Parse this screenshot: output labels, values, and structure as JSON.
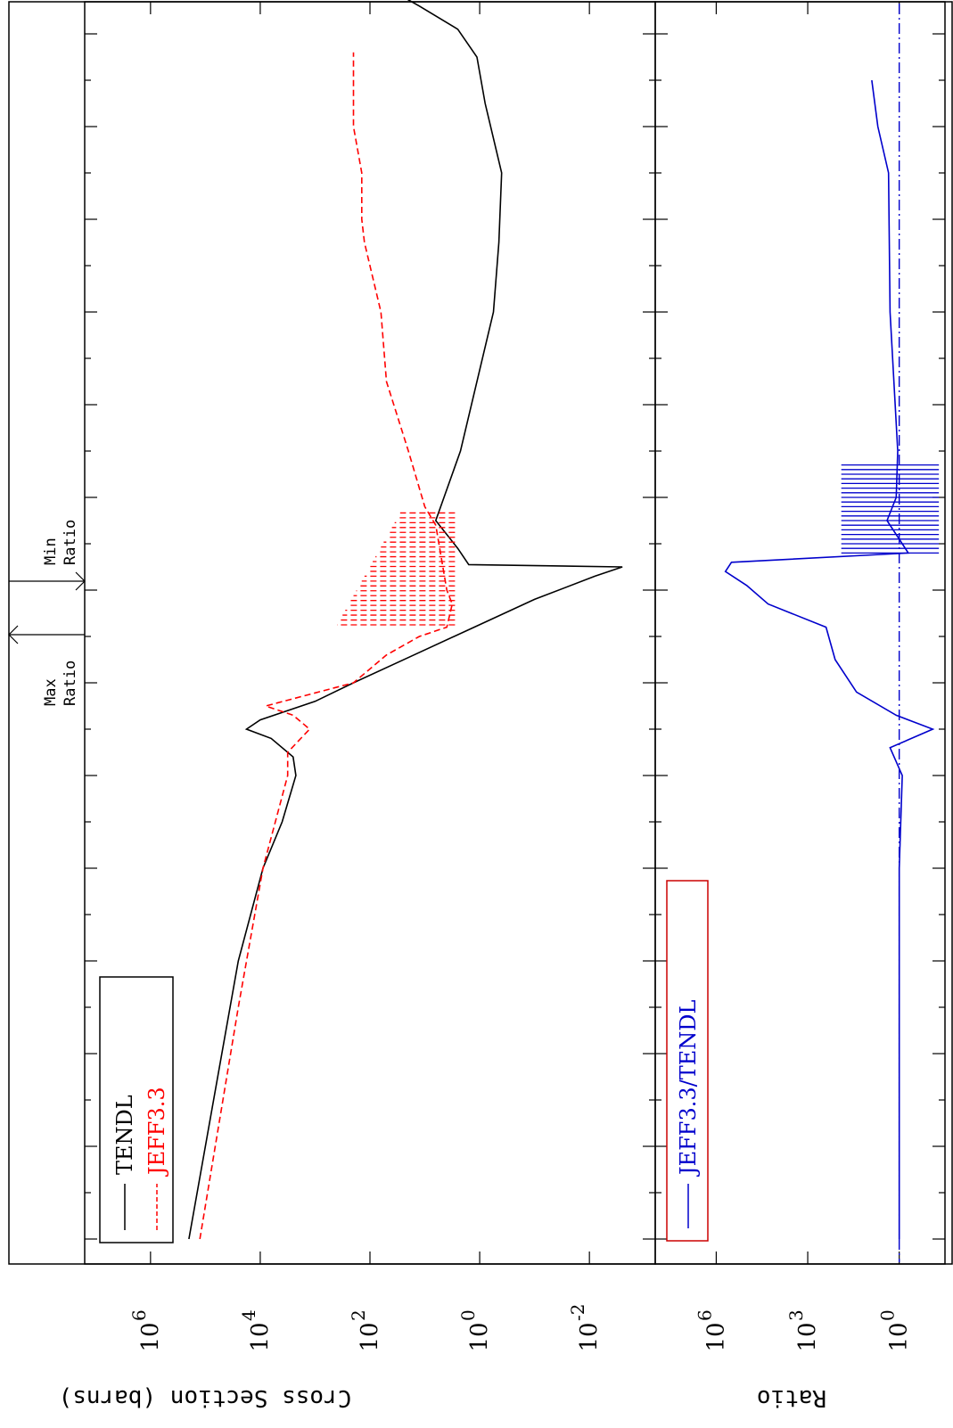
{
  "chart_data": [
    {
      "type": "line",
      "panel": "cross-section",
      "ylabel": "Cross Section (barns)",
      "yscale": "log",
      "xscale": "log",
      "ylim_log10": [
        -3.2,
        7.2
      ],
      "y_ticks": [
        {
          "label": "10",
          "exp": "6",
          "value": 6
        },
        {
          "label": "10",
          "exp": "4",
          "value": 4
        },
        {
          "label": "10",
          "exp": "2",
          "value": 2
        },
        {
          "label": "10",
          "exp": "0",
          "value": 0
        },
        {
          "label": "10",
          "exp": "-2",
          "value": -2
        }
      ],
      "legend": {
        "placement": "bottom-left (rotated view)",
        "entries": [
          "TENDL",
          "JEFF3.3"
        ]
      },
      "series": [
        {
          "name": "TENDL",
          "color": "#000000",
          "style": "solid",
          "points": [
            [
              0,
              5.3
            ],
            [
              6,
              4.4
            ],
            [
              8,
              3.95
            ],
            [
              9,
              3.6
            ],
            [
              10,
              3.35
            ],
            [
              10.4,
              3.4
            ],
            [
              10.8,
              3.8
            ],
            [
              11,
              4.25
            ],
            [
              11.2,
              4.0
            ],
            [
              11.6,
              3.0
            ],
            [
              12,
              2.3
            ],
            [
              12.6,
              1.2
            ],
            [
              13.2,
              0.1
            ],
            [
              13.8,
              -1.0
            ],
            [
              14.3,
              -2.1
            ],
            [
              14.5,
              -2.6
            ],
            [
              14.55,
              0.2
            ],
            [
              14.9,
              0.4
            ],
            [
              15.5,
              0.8
            ],
            [
              17,
              0.35
            ],
            [
              20,
              -0.25
            ],
            [
              21.5,
              -0.35
            ],
            [
              23,
              -0.4
            ],
            [
              24.5,
              -0.1
            ],
            [
              25.5,
              0.05
            ],
            [
              26.1,
              0.4
            ],
            [
              26.6,
              1.1
            ],
            [
              27,
              1.7
            ]
          ]
        },
        {
          "name": "JEFF3.3",
          "color": "#ff0000",
          "style": "dashed",
          "points": [
            [
              0,
              5.1
            ],
            [
              5,
              4.4
            ],
            [
              8,
              3.95
            ],
            [
              10,
              3.5
            ],
            [
              10.5,
              3.5
            ],
            [
              11,
              3.1
            ],
            [
              11.3,
              3.4
            ],
            [
              11.5,
              3.9
            ],
            [
              12,
              2.3
            ],
            [
              12.6,
              1.7
            ],
            [
              13,
              1.1
            ],
            [
              13.2,
              0.6
            ],
            [
              13.7,
              0.5
            ],
            [
              14,
              0.6
            ],
            [
              15.4,
              0.8
            ],
            [
              15.8,
              1.0
            ],
            [
              17,
              1.3
            ],
            [
              18.5,
              1.7
            ],
            [
              20,
              1.8
            ],
            [
              21.5,
              2.1
            ],
            [
              22,
              2.15
            ],
            [
              23,
              2.15
            ],
            [
              24,
              2.3
            ],
            [
              24.6,
              2.3
            ],
            [
              25.6,
              2.3
            ]
          ]
        }
      ]
    },
    {
      "type": "line",
      "panel": "ratio",
      "ylabel": "Ratio",
      "yscale": "log",
      "ylim_log10": [
        -1.5,
        8
      ],
      "y_ticks": [
        {
          "label": "10",
          "exp": "6",
          "value": 6
        },
        {
          "label": "10",
          "exp": "3",
          "value": 3
        },
        {
          "label": "10",
          "exp": "0",
          "value": 0
        }
      ],
      "legend": {
        "placement": "bottom-left (rotated view)",
        "entries": [
          "JEFF3.3/TENDL"
        ]
      },
      "series": [
        {
          "name": "JEFF3.3/TENDL",
          "color": "#0000cc",
          "style": "solid",
          "points": [
            [
              0,
              0
            ],
            [
              8,
              0
            ],
            [
              10,
              -0.1
            ],
            [
              10.6,
              0.3
            ],
            [
              11,
              -1.1
            ],
            [
              11.3,
              0.1
            ],
            [
              11.8,
              1.4
            ],
            [
              12.5,
              2.1
            ],
            [
              13.2,
              2.4
            ],
            [
              13.7,
              4.3
            ],
            [
              14.1,
              5.0
            ],
            [
              14.4,
              5.7
            ],
            [
              14.6,
              5.5
            ],
            [
              14.8,
              -0.3
            ],
            [
              15.5,
              0.4
            ],
            [
              16,
              0.1
            ],
            [
              17,
              0.05
            ],
            [
              20,
              0.3
            ],
            [
              23,
              0.35
            ],
            [
              24,
              0.7
            ],
            [
              25,
              0.9
            ]
          ]
        }
      ]
    }
  ],
  "annotations": {
    "max_ratio": {
      "line1": "Max",
      "line2": "Ratio"
    },
    "min_ratio": {
      "line1": "Min",
      "line2": "Ratio"
    }
  },
  "colors": {
    "tendl": "#000000",
    "jeff": "#ff0000",
    "ratio": "#0000cc",
    "ratio_legend_border": "#cc0000"
  }
}
